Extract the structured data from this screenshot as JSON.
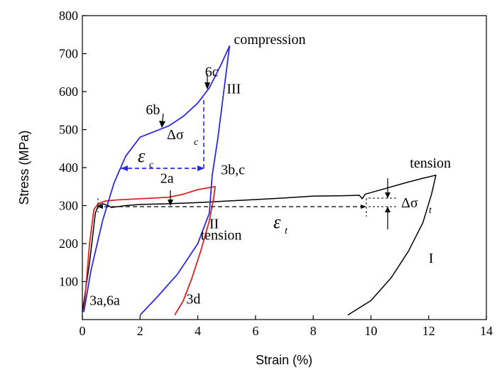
{
  "chart_data": {
    "type": "line",
    "xlabel": "Strain (%)",
    "ylabel": "Stress (MPa)",
    "xlim": [
      0,
      14
    ],
    "ylim": [
      0,
      800
    ],
    "xticks": [
      "0",
      "2",
      "4",
      "6",
      "8",
      "10",
      "12",
      "14"
    ],
    "yticks": [
      "100",
      "200",
      "300",
      "400",
      "500",
      "600",
      "700",
      "800"
    ],
    "grid": false,
    "legend": "none",
    "series": [
      {
        "color": "#000000",
        "points": [
          [
            0,
            20
          ],
          [
            0.25,
            150
          ],
          [
            0.45,
            280
          ],
          [
            0.55,
            300
          ],
          [
            0.7,
            305
          ],
          [
            0.9,
            300
          ],
          [
            1.0,
            295
          ],
          [
            1.2,
            297
          ],
          [
            1.5,
            300
          ],
          [
            2,
            303
          ],
          [
            3,
            305
          ],
          [
            4,
            308
          ],
          [
            5,
            312
          ],
          [
            6,
            316
          ],
          [
            7,
            320
          ],
          [
            8,
            325
          ],
          [
            9,
            326
          ],
          [
            9.6,
            327
          ],
          [
            9.7,
            318
          ],
          [
            9.8,
            330
          ],
          [
            10.5,
            345
          ],
          [
            11.2,
            360
          ],
          [
            11.8,
            372
          ],
          [
            12.25,
            380
          ],
          [
            12.1,
            330
          ],
          [
            11.8,
            255
          ],
          [
            11.3,
            180
          ],
          [
            10.7,
            110
          ],
          [
            10,
            50
          ],
          [
            9.2,
            12
          ]
        ]
      },
      {
        "color": "#e02020",
        "points": [
          [
            0.05,
            20
          ],
          [
            0.25,
            200
          ],
          [
            0.4,
            290
          ],
          [
            0.55,
            305
          ],
          [
            0.8,
            312
          ],
          [
            1.2,
            315
          ],
          [
            2,
            318
          ],
          [
            3,
            322
          ],
          [
            3.5,
            330
          ],
          [
            4,
            342
          ],
          [
            4.6,
            350
          ],
          [
            4.55,
            320
          ],
          [
            4.4,
            260
          ],
          [
            4.1,
            180
          ],
          [
            3.8,
            110
          ],
          [
            3.5,
            50
          ],
          [
            3.2,
            12
          ]
        ]
      },
      {
        "color": "#2a2ae0",
        "points": [
          [
            0.05,
            20
          ],
          [
            0.3,
            130
          ],
          [
            0.7,
            260
          ],
          [
            1.1,
            360
          ],
          [
            1.5,
            430
          ],
          [
            2,
            480
          ],
          [
            2.5,
            495
          ],
          [
            3,
            510
          ],
          [
            3.5,
            535
          ],
          [
            4,
            570
          ],
          [
            4.4,
            610
          ],
          [
            4.8,
            670
          ],
          [
            5.1,
            720
          ],
          [
            4.9,
            600
          ],
          [
            4.7,
            480
          ],
          [
            4.5,
            380
          ],
          [
            4.4,
            280
          ],
          [
            4.0,
            200
          ],
          [
            3.3,
            120
          ],
          [
            2.6,
            60
          ],
          [
            2.0,
            12
          ]
        ]
      }
    ],
    "labels": [
      "compression",
      "6c",
      "III",
      "6b",
      "3b,c",
      "2a",
      "tension",
      "II",
      "tension",
      "I",
      "3a,6a",
      "3d",
      "Δσ",
      "c",
      "Δσ",
      "t",
      "ε",
      "c",
      "ε",
      "t"
    ],
    "annotation_anchors": [
      {
        "text_index": 0,
        "x": 5.25,
        "y": 725
      },
      {
        "text_index": 1,
        "x": 4.25,
        "y": 640
      },
      {
        "text_index": 2,
        "x": 5.0,
        "y": 595
      },
      {
        "text_index": 3,
        "x": 2.2,
        "y": 540
      },
      {
        "text_index": 4,
        "x": 4.8,
        "y": 382
      },
      {
        "text_index": 5,
        "x": 2.7,
        "y": 360
      },
      {
        "text_index": 6,
        "x": 11.35,
        "y": 400
      },
      {
        "text_index": 7,
        "x": 4.4,
        "y": 240
      },
      {
        "text_index": 8,
        "x": 4.1,
        "y": 210
      },
      {
        "text_index": 9,
        "x": 12.0,
        "y": 150
      },
      {
        "text_index": 10,
        "x": 0.25,
        "y": 38
      },
      {
        "text_index": 11,
        "x": 3.6,
        "y": 42
      }
    ]
  }
}
